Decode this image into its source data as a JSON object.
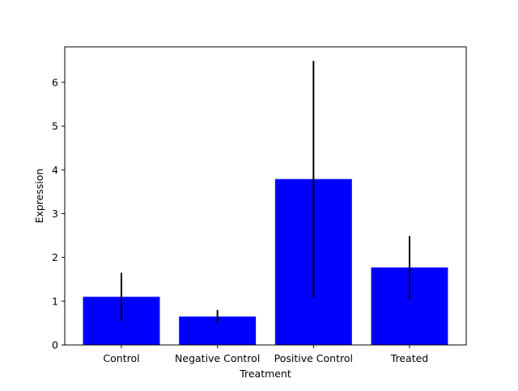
{
  "chart_data": {
    "type": "bar",
    "title": "",
    "xlabel": "Treatment",
    "ylabel": "Expression",
    "categories": [
      "Control",
      "Negative Control",
      "Positive Control",
      "Treated"
    ],
    "values": [
      1.1,
      0.65,
      3.79,
      1.77
    ],
    "errors": [
      0.55,
      0.15,
      2.7,
      0.72
    ],
    "ylim": [
      0,
      6.81
    ],
    "yticks": [
      0,
      1,
      2,
      3,
      4,
      5,
      6
    ],
    "grid": false,
    "bar_color": "#0000ff",
    "error_color": "#000000"
  }
}
